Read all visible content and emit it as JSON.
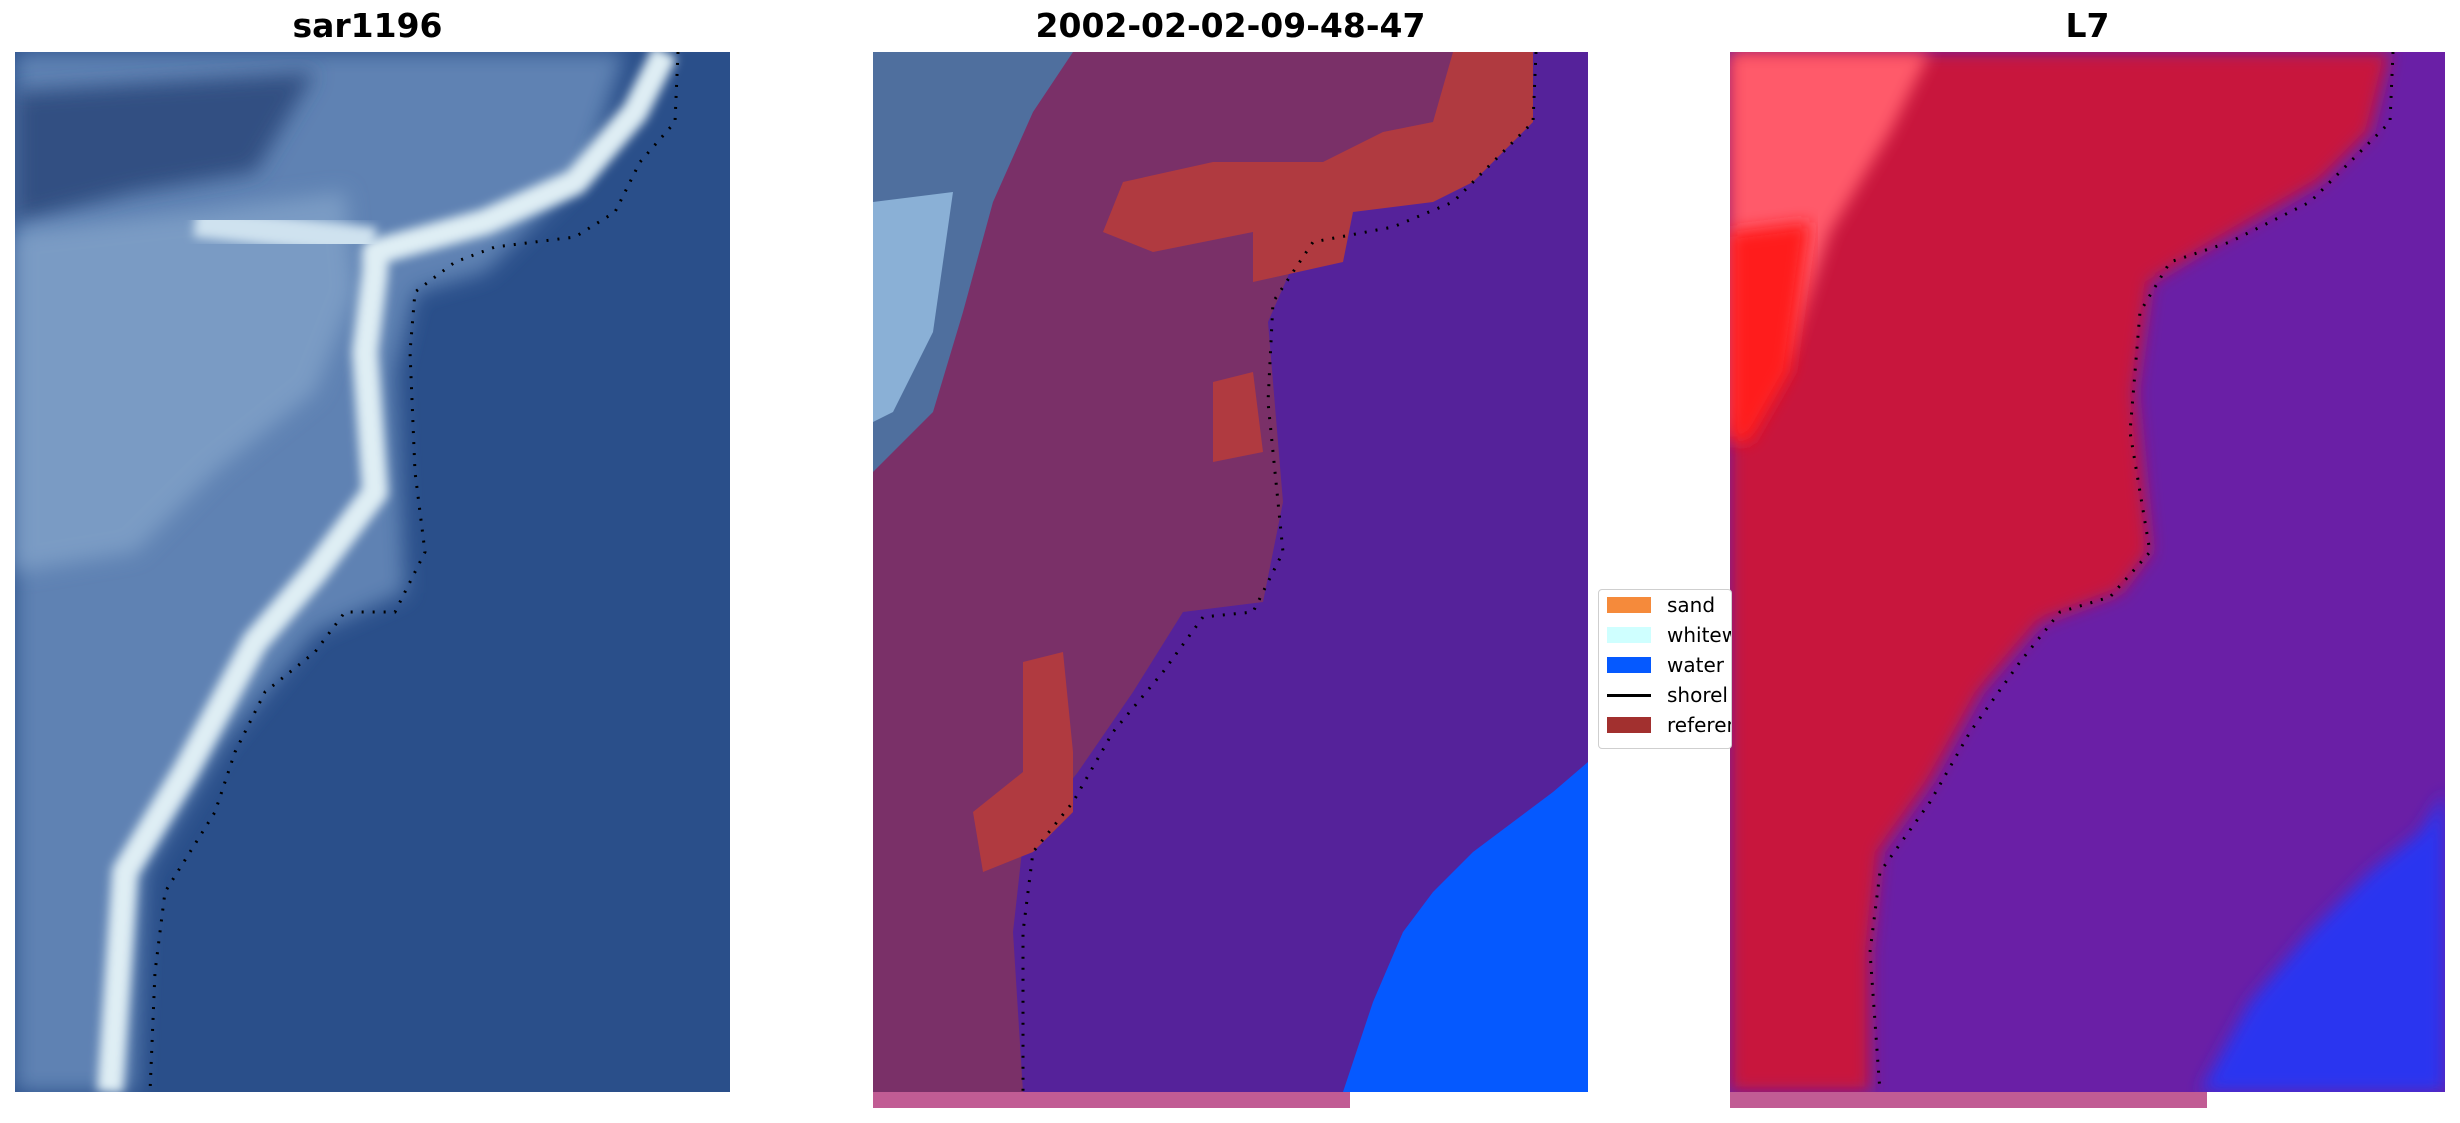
{
  "panels": [
    {
      "title": "sar1196"
    },
    {
      "title": "2002-02-02-09-48-47"
    },
    {
      "title": "L7"
    }
  ],
  "legend": {
    "items": [
      {
        "label": "sand",
        "color": "#f58a3b",
        "kind": "patch"
      },
      {
        "label": "whitew",
        "color": "#cfffff",
        "kind": "patch"
      },
      {
        "label": "water",
        "color": "#0559ff",
        "kind": "patch"
      },
      {
        "label": "shorel",
        "color": "#000000",
        "kind": "line"
      },
      {
        "label": "referen",
        "color": "#a2302f",
        "kind": "patch"
      }
    ]
  },
  "colors": {
    "rgb_water": "#2a4f8a",
    "rgb_land": "#5b7fb1",
    "rgb_foam": "#e8f2f6",
    "class_land": "#7a3068",
    "class_water": "#55229a",
    "class_sea": "#0559ff",
    "class_reference": "#b03a40",
    "index_land": "#c8123c",
    "index_water": "#6a1fa6",
    "index_deep": "#2a34f0",
    "strip": "#c15c94"
  }
}
